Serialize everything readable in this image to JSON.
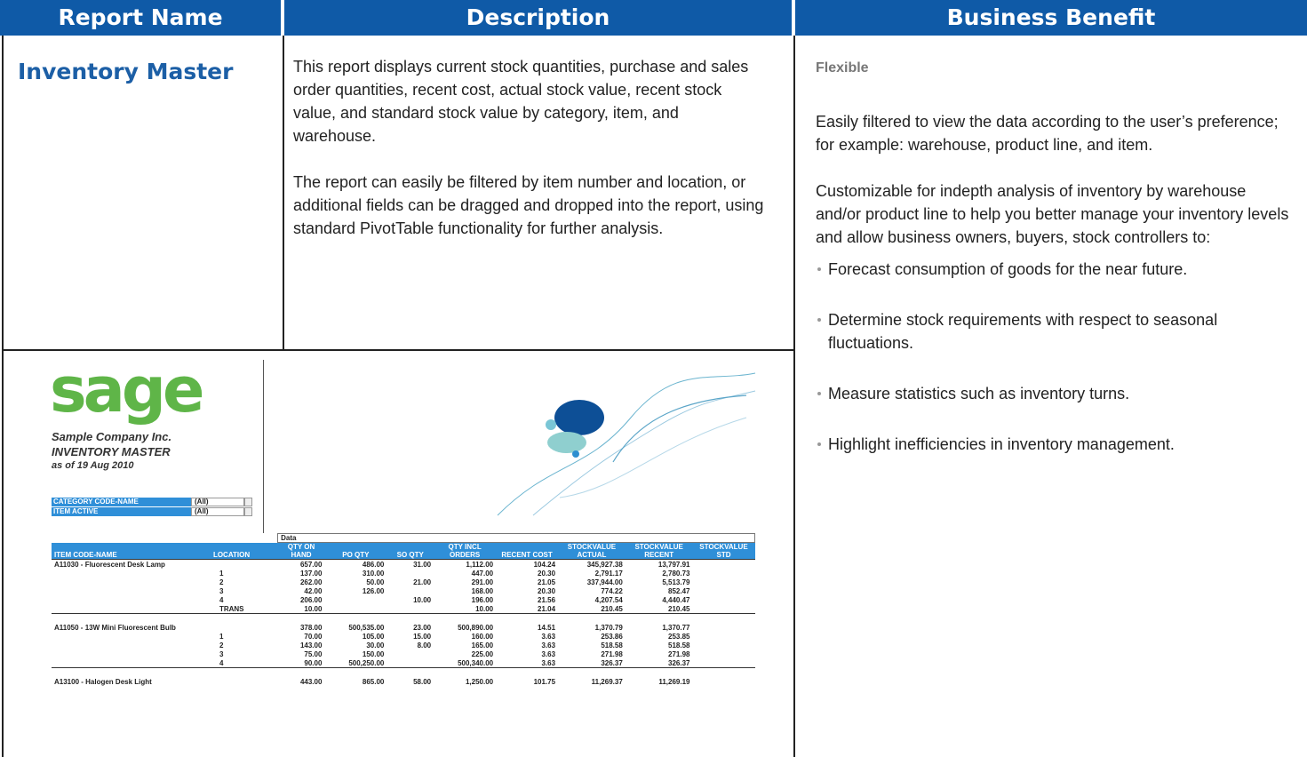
{
  "header": {
    "columns": [
      "Report Name",
      "Description",
      "Business Benefit"
    ]
  },
  "report": {
    "name": "Inventory Master",
    "description": [
      "This report displays current stock quantities, purchase and sales order quantities, recent cost, actual stock value, recent stock value, and standard stock value by category, item, and warehouse.",
      "The report can easily be filtered by item number and location, or additional fields can be dragged and dropped into the report, using standard PivotTable functionality for further analysis."
    ],
    "benefit": {
      "heading": "Flexible",
      "paragraphs": [
        "Easily filtered to view the data according to the user’s preference; for example: warehouse, product line, and item.",
        "Customizable for indepth analysis of inventory by warehouse and/or product line to help you better manage your inventory levels and allow business owners, buyers, stock controllers to:"
      ],
      "bullets": [
        "Forecast consumption of goods for the near future.",
        "Determine stock requirements with respect to seasonal fluctuations.",
        "Measure statistics such as inventory turns.",
        "Highlight inefficiencies in inventory management."
      ]
    }
  },
  "screenshot": {
    "logo": "sage",
    "company": "Sample Company Inc.",
    "title": "INVENTORY MASTER",
    "date": "as of  19 Aug 2010",
    "filters": [
      {
        "label": "CATEGORY CODE-NAME",
        "value": "(All)"
      },
      {
        "label": "ITEM ACTIVE",
        "value": "(All)"
      }
    ],
    "data_label": "Data",
    "columns": [
      "ITEM CODE-NAME",
      "LOCATION",
      "QTY ON HAND",
      "PO QTY",
      "SO QTY",
      "QTY INCL ORDERS",
      "RECENT COST",
      "STOCKVALUE ACTUAL",
      "STOCKVALUE RECENT",
      "STOCKVALUE STD"
    ],
    "rows": [
      [
        "A11030 - Fluorescent Desk Lamp",
        null,
        "657.00",
        "486.00",
        "31.00",
        "1,112.00",
        "104.24",
        "345,927.38",
        "13,797.91",
        null
      ],
      [
        null,
        "1",
        "137.00",
        "310.00",
        null,
        "447.00",
        "20.30",
        "2,791.17",
        "2,780.73",
        null
      ],
      [
        null,
        "2",
        "262.00",
        "50.00",
        "21.00",
        "291.00",
        "21.05",
        "337,944.00",
        "5,513.79",
        null
      ],
      [
        null,
        "3",
        "42.00",
        "126.00",
        null,
        "168.00",
        "20.30",
        "774.22",
        "852.47",
        null
      ],
      [
        null,
        "4",
        "206.00",
        null,
        "10.00",
        "196.00",
        "21.56",
        "4,207.54",
        "4,440.47",
        null
      ],
      [
        null,
        "TRANS",
        "10.00",
        null,
        null,
        "10.00",
        "21.04",
        "210.45",
        "210.45",
        null
      ],
      [
        "A11050 - 13W Mini Fluorescent Bulb",
        null,
        "378.00",
        "500,535.00",
        "23.00",
        "500,890.00",
        "14.51",
        "1,370.79",
        "1,370.77",
        null
      ],
      [
        null,
        "1",
        "70.00",
        "105.00",
        "15.00",
        "160.00",
        "3.63",
        "253.86",
        "253.85",
        null
      ],
      [
        null,
        "2",
        "143.00",
        "30.00",
        "8.00",
        "165.00",
        "3.63",
        "518.58",
        "518.58",
        null
      ],
      [
        null,
        "3",
        "75.00",
        "150.00",
        null,
        "225.00",
        "3.63",
        "271.98",
        "271.98",
        null
      ],
      [
        null,
        "4",
        "90.00",
        "500,250.00",
        null,
        "500,340.00",
        "3.63",
        "326.37",
        "326.37",
        null
      ],
      [
        "A13100 - Halogen Desk Light",
        null,
        "443.00",
        "865.00",
        "58.00",
        "1,250.00",
        "101.75",
        "11,269.37",
        "11,269.19",
        null
      ]
    ]
  }
}
